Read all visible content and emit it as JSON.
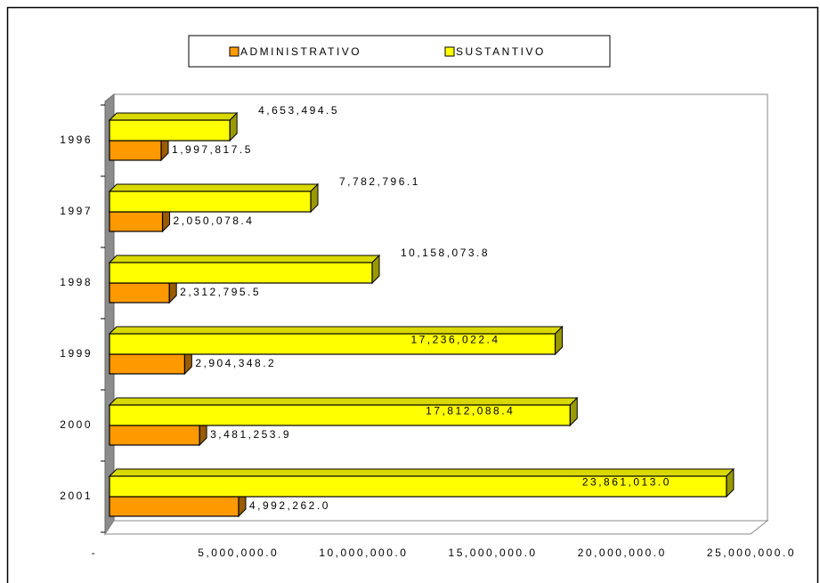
{
  "chart_data": {
    "type": "bar3d_horizontal",
    "categories": [
      "1996",
      "1997",
      "1998",
      "1999",
      "2000",
      "2001"
    ],
    "series": [
      {
        "name": "ADMINISTRATIVO",
        "color": "#ff9900",
        "values": [
          1997817.5,
          2050078.4,
          2312795.5,
          2904348.2,
          3481253.9,
          4992262.0
        ],
        "value_labels": [
          "1,997,817.5",
          "2,050,078.4",
          "2,312,795.5",
          "2,904,348.2",
          "3,481,253.9",
          "4,992,262.0"
        ]
      },
      {
        "name": "SUSTANTIVO",
        "color": "#ffff00",
        "values": [
          4653494.5,
          7782796.1,
          10158073.8,
          17236022.4,
          17812088.4,
          23861013.0
        ],
        "value_labels": [
          "4,653,494.5",
          "7,782,796.1",
          "10,158,073.8",
          "17,236,022.4",
          "17,812,088.4",
          "23,861,013.0"
        ]
      }
    ],
    "xlim": [
      0,
      25000000
    ],
    "xticks": [
      {
        "value": 0,
        "label": "-"
      },
      {
        "value": 5000000,
        "label": "5,000,000.0"
      },
      {
        "value": 10000000,
        "label": "10,000,000.0"
      },
      {
        "value": 15000000,
        "label": "15,000,000.0"
      },
      {
        "value": 20000000,
        "label": "20,000,000.0"
      },
      {
        "value": 25000000,
        "label": "25,000,000.0"
      }
    ],
    "legend": "top"
  }
}
